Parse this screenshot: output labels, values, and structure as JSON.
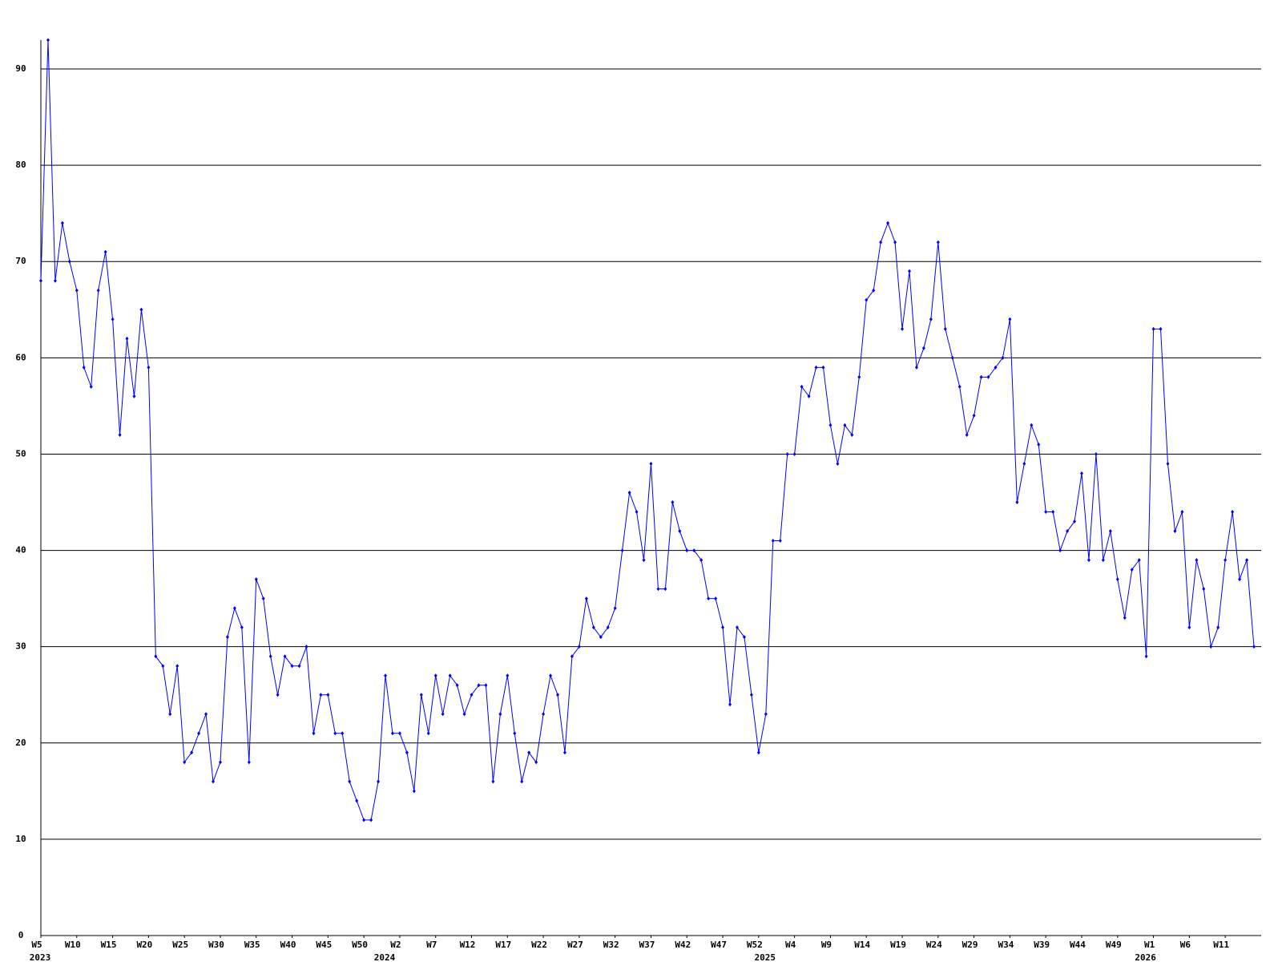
{
  "chart_data": {
    "type": "line",
    "categories": [
      "W5",
      null,
      null,
      null,
      null,
      "W10",
      null,
      null,
      null,
      null,
      "W15",
      null,
      null,
      null,
      null,
      "W20",
      null,
      null,
      null,
      null,
      "W25",
      null,
      null,
      null,
      null,
      "W30",
      null,
      null,
      null,
      null,
      "W35",
      null,
      null,
      null,
      null,
      "W40",
      null,
      null,
      null,
      null,
      "W45",
      null,
      null,
      null,
      null,
      "W50",
      null,
      null,
      null,
      null,
      "W2",
      null,
      null,
      null,
      null,
      "W7",
      null,
      null,
      null,
      null,
      "W12",
      null,
      null,
      null,
      null,
      "W17",
      null,
      null,
      null,
      null,
      "W22",
      null,
      null,
      null,
      null,
      "W27",
      null,
      null,
      null,
      null,
      "W32",
      null,
      null,
      null,
      null,
      "W37",
      null,
      null,
      null,
      null,
      "W42",
      null,
      null,
      null,
      null,
      "W47",
      null,
      null,
      null,
      null,
      "W52",
      null,
      null,
      null,
      null,
      "W4",
      null,
      null,
      null,
      null,
      "W9",
      null,
      null,
      null,
      null,
      "W14",
      null,
      null,
      null,
      null,
      "W19",
      null,
      null,
      null,
      null,
      "W24",
      null,
      null,
      null,
      null,
      "W29",
      null,
      null,
      null,
      null,
      "W34",
      null,
      null,
      null,
      null,
      "W39",
      null,
      null,
      null,
      null,
      "W44",
      null,
      null,
      null,
      null,
      "W49",
      null,
      null,
      null,
      null,
      "W1",
      null,
      null,
      null,
      null,
      "W6",
      null,
      null,
      null,
      null,
      "W11",
      null,
      null,
      null,
      null
    ],
    "category_years": [
      "2023",
      null,
      null,
      null,
      null,
      null,
      null,
      null,
      null,
      null,
      null,
      null,
      null,
      null,
      null,
      null,
      null,
      null,
      null,
      null,
      null,
      null,
      null,
      null,
      null,
      null,
      null,
      null,
      null,
      null,
      null,
      null,
      null,
      null,
      null,
      null,
      null,
      null,
      null,
      null,
      null,
      null,
      null,
      null,
      null,
      null,
      null,
      null,
      "2024",
      null,
      null,
      null,
      null,
      null,
      null,
      null,
      null,
      null,
      null,
      null,
      null,
      null,
      null,
      null,
      null,
      null,
      null,
      null,
      null,
      null,
      null,
      null,
      null,
      null,
      null,
      null,
      null,
      null,
      null,
      null,
      null,
      null,
      null,
      null,
      null,
      null,
      null,
      null,
      null,
      null,
      null,
      null,
      null,
      null,
      null,
      null,
      null,
      null,
      null,
      null,
      null,
      "2025",
      null,
      null,
      null,
      null,
      null,
      null,
      null,
      null,
      null,
      null,
      null,
      null,
      null,
      null,
      null,
      null,
      null,
      null,
      null,
      null,
      null,
      null,
      null,
      null,
      null,
      null,
      null,
      null,
      null,
      null,
      null,
      null,
      null,
      null,
      null,
      null,
      null,
      null,
      null,
      null,
      null,
      null,
      null,
      null,
      null,
      null,
      null,
      null,
      null,
      null,
      null,
      null,
      "2026",
      null,
      null,
      null,
      null,
      null,
      null,
      null,
      null,
      null,
      null,
      null,
      null,
      null,
      null,
      null
    ],
    "series": [
      {
        "color": "#0000ff",
        "values": [
          68,
          93,
          68,
          74,
          70,
          67,
          59,
          57,
          67,
          71,
          64,
          52,
          62,
          56,
          65,
          59,
          29,
          28,
          23,
          28,
          18,
          19,
          21,
          23,
          16,
          18,
          31,
          34,
          32,
          18,
          37,
          35,
          29,
          25,
          29,
          28,
          28,
          30,
          21,
          25,
          25,
          21,
          21,
          16,
          14,
          12,
          12,
          16,
          27,
          21,
          21,
          19,
          15,
          25,
          21,
          27,
          23,
          27,
          26,
          23,
          25,
          26,
          26,
          16,
          23,
          27,
          21,
          16,
          19,
          18,
          23,
          27,
          25,
          19,
          29,
          30,
          35,
          32,
          31,
          32,
          34,
          40,
          46,
          44,
          39,
          49,
          36,
          36,
          45,
          42,
          40,
          40,
          39,
          35,
          35,
          32,
          24,
          32,
          31,
          25,
          19,
          23,
          41,
          41,
          50,
          50,
          57,
          56,
          59,
          59,
          53,
          49,
          53,
          52,
          58,
          66,
          67,
          72,
          74,
          72,
          63,
          69,
          59,
          61,
          64,
          72,
          63,
          60,
          57,
          52,
          54,
          58,
          58,
          59,
          60,
          64,
          45,
          49,
          53,
          51,
          44,
          44,
          40,
          42,
          43,
          48,
          39,
          50,
          39,
          42,
          37,
          33,
          38,
          39,
          29,
          63,
          63,
          49,
          42,
          44,
          32,
          39,
          36,
          30,
          32,
          39,
          44,
          37,
          39,
          30
        ]
      }
    ],
    "ylim": [
      0,
      93
    ],
    "yticks": [
      0,
      10,
      20,
      30,
      40,
      50,
      60,
      70,
      80,
      90
    ],
    "grid": true
  }
}
